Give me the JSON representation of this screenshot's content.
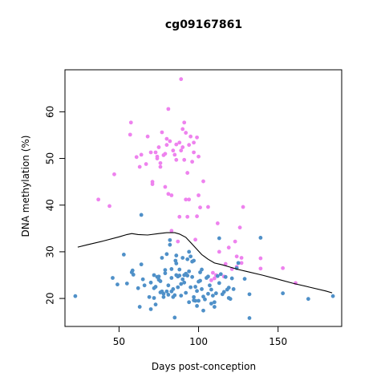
{
  "chart_data": {
    "type": "scatter",
    "title": "cg09167861",
    "xlabel": "Days post-conception",
    "ylabel": "DNA methylation (%)",
    "xlim": [
      16,
      190
    ],
    "ylim": [
      14,
      69
    ],
    "xticks": [
      50,
      100,
      150
    ],
    "yticks": [
      20,
      30,
      40,
      50,
      60
    ],
    "grid": false,
    "legend": "none",
    "series": [
      {
        "color": "#EE82EE",
        "points": [
          [
            37,
            41.2
          ],
          [
            44,
            39.8
          ],
          [
            47,
            46.6
          ],
          [
            57,
            55.1
          ],
          [
            57.5,
            57.7
          ],
          [
            61,
            50.3
          ],
          [
            63,
            48.2
          ],
          [
            64,
            50.8
          ],
          [
            67,
            48.8
          ],
          [
            68,
            54.7
          ],
          [
            70,
            51.3
          ],
          [
            71,
            45
          ],
          [
            71,
            44.5
          ],
          [
            73,
            51.3
          ],
          [
            74,
            50.4
          ],
          [
            74,
            50
          ],
          [
            75,
            52.4
          ],
          [
            76,
            49
          ],
          [
            76,
            48.2
          ],
          [
            77,
            55.6
          ],
          [
            78,
            50.7
          ],
          [
            79,
            51
          ],
          [
            79,
            43.9
          ],
          [
            80,
            54.2
          ],
          [
            80,
            52.9
          ],
          [
            81,
            60.6
          ],
          [
            81,
            42.4
          ],
          [
            82,
            53.7
          ],
          [
            83,
            34.5
          ],
          [
            83,
            42.1
          ],
          [
            84,
            51.7
          ],
          [
            85,
            50.8
          ],
          [
            86,
            53
          ],
          [
            86,
            49.7
          ],
          [
            87,
            32.2
          ],
          [
            88,
            53.4
          ],
          [
            88,
            37.5
          ],
          [
            89,
            51.7
          ],
          [
            89,
            67
          ],
          [
            90,
            56.3
          ],
          [
            90,
            52.4
          ],
          [
            91,
            57.7
          ],
          [
            91,
            49.7
          ],
          [
            92,
            41.2
          ],
          [
            92,
            55.5
          ],
          [
            93,
            46.9
          ],
          [
            93,
            37.5
          ],
          [
            94,
            41.2
          ],
          [
            94,
            52.9
          ],
          [
            95,
            54.7
          ],
          [
            96,
            49.3
          ],
          [
            97,
            51.3
          ],
          [
            97,
            53.4
          ],
          [
            98,
            32.6
          ],
          [
            99,
            54.5
          ],
          [
            99,
            37.6
          ],
          [
            100,
            42.1
          ],
          [
            100,
            50.4
          ],
          [
            101,
            39.5
          ],
          [
            103,
            45.1
          ],
          [
            106,
            39.6
          ],
          [
            108,
            23.9
          ],
          [
            109,
            25.5
          ],
          [
            110,
            24.3
          ],
          [
            111,
            25
          ],
          [
            112,
            36.1
          ],
          [
            113,
            30
          ],
          [
            116,
            24.7
          ],
          [
            117,
            27.4
          ],
          [
            119,
            30.9
          ],
          [
            121,
            26.3
          ],
          [
            123,
            32.2
          ],
          [
            124,
            29
          ],
          [
            124,
            26.8
          ],
          [
            126,
            35.2
          ],
          [
            127,
            27.6
          ],
          [
            127,
            28.7
          ],
          [
            128,
            39.6
          ],
          [
            139,
            28.6
          ],
          [
            139,
            26.4
          ],
          [
            153,
            26.5
          ],
          [
            161,
            23.3
          ]
        ]
      },
      {
        "color": "#4F90C8",
        "points": [
          [
            22.5,
            20.5
          ],
          [
            46,
            24.4
          ],
          [
            49,
            23
          ],
          [
            53,
            29.4
          ],
          [
            55,
            23.2
          ],
          [
            58,
            25.6
          ],
          [
            58.5,
            26
          ],
          [
            59,
            25.1
          ],
          [
            62,
            22.2
          ],
          [
            63,
            18.2
          ],
          [
            64,
            37.9
          ],
          [
            64,
            27.3
          ],
          [
            65,
            24.1
          ],
          [
            66,
            22.8
          ],
          [
            69,
            20.3
          ],
          [
            70,
            17.7
          ],
          [
            70,
            23.4
          ],
          [
            72,
            25
          ],
          [
            72,
            20.1
          ],
          [
            72,
            22.2
          ],
          [
            73,
            18.7
          ],
          [
            73,
            22.5
          ],
          [
            74,
            24.6
          ],
          [
            75,
            24
          ],
          [
            75,
            24.7
          ],
          [
            76,
            23.7
          ],
          [
            76,
            21.3
          ],
          [
            77,
            28.7
          ],
          [
            77,
            21.5
          ],
          [
            78,
            21
          ],
          [
            78,
            20.3
          ],
          [
            79,
            26.1
          ],
          [
            79,
            25.4
          ],
          [
            80,
            29.5
          ],
          [
            80,
            21.5
          ],
          [
            81,
            22.8
          ],
          [
            81,
            20.8
          ],
          [
            82,
            32.5
          ],
          [
            82,
            31.5
          ],
          [
            83,
            26.3
          ],
          [
            83,
            24.4
          ],
          [
            83,
            21.5
          ],
          [
            84,
            22
          ],
          [
            84,
            20.3
          ],
          [
            85,
            15.9
          ],
          [
            85,
            20.7
          ],
          [
            85.5,
            28.1
          ],
          [
            86,
            29.2
          ],
          [
            86,
            27.5
          ],
          [
            86,
            25
          ],
          [
            87,
            24.7
          ],
          [
            87,
            22.4
          ],
          [
            88,
            26.2
          ],
          [
            88,
            24.9
          ],
          [
            89,
            20.6
          ],
          [
            89,
            23.1
          ],
          [
            90,
            28.7
          ],
          [
            90,
            24.1
          ],
          [
            91,
            25
          ],
          [
            91,
            23.4
          ],
          [
            92,
            25.3
          ],
          [
            92,
            21.2
          ],
          [
            93,
            24.9
          ],
          [
            93,
            28.4
          ],
          [
            94,
            25.8
          ],
          [
            94,
            30
          ],
          [
            94,
            19.2
          ],
          [
            95,
            29
          ],
          [
            95,
            22.4
          ],
          [
            96,
            27.9
          ],
          [
            96,
            24.6
          ],
          [
            97,
            19.6
          ],
          [
            97,
            20.3
          ],
          [
            97,
            28.1
          ],
          [
            98,
            19.5
          ],
          [
            98,
            22.5
          ],
          [
            99,
            21.6
          ],
          [
            99,
            18.4
          ],
          [
            100,
            19.5
          ],
          [
            100,
            23.6
          ],
          [
            101,
            25.6
          ],
          [
            101,
            23.8
          ],
          [
            102,
            26.2
          ],
          [
            102,
            22
          ],
          [
            103,
            20.4
          ],
          [
            103,
            17.4
          ],
          [
            104,
            19.8
          ],
          [
            105,
            24.4
          ],
          [
            106,
            21
          ],
          [
            106,
            24.7
          ],
          [
            107,
            22.8
          ],
          [
            108,
            21.9
          ],
          [
            108,
            18.9
          ],
          [
            109,
            20.6
          ],
          [
            110,
            18.2
          ],
          [
            110,
            19.2
          ],
          [
            111,
            21.1
          ],
          [
            112,
            24.8
          ],
          [
            113,
            23.3
          ],
          [
            113,
            32.9
          ],
          [
            114,
            25.2
          ],
          [
            115,
            20.9
          ],
          [
            116,
            21.4
          ],
          [
            117,
            24.6
          ],
          [
            118,
            21.9
          ],
          [
            119,
            22.3
          ],
          [
            119,
            20.1
          ],
          [
            120,
            19.9
          ],
          [
            121,
            24.3
          ],
          [
            122,
            22
          ],
          [
            124,
            26.5
          ],
          [
            125,
            27.6
          ],
          [
            129,
            24.2
          ],
          [
            132,
            15.8
          ],
          [
            132,
            20.9
          ],
          [
            139,
            33
          ],
          [
            153,
            21.1
          ],
          [
            169,
            19.9
          ],
          [
            184.5,
            20.5
          ]
        ]
      }
    ],
    "trend_line": {
      "color": "#000000",
      "points": [
        [
          24,
          31
        ],
        [
          30,
          31.5
        ],
        [
          40,
          32.3
        ],
        [
          50,
          33.2
        ],
        [
          55,
          33.7
        ],
        [
          58,
          33.9
        ],
        [
          62,
          33.7
        ],
        [
          68,
          33.6
        ],
        [
          75,
          33.9
        ],
        [
          80,
          34.1
        ],
        [
          85,
          34.1
        ],
        [
          88,
          33.8
        ],
        [
          92,
          33.1
        ],
        [
          95,
          32
        ],
        [
          98,
          30.9
        ],
        [
          102,
          29.4
        ],
        [
          106,
          28.4
        ],
        [
          110,
          27.6
        ],
        [
          115,
          27.2
        ],
        [
          120,
          26.7
        ],
        [
          125,
          26.2
        ],
        [
          130,
          25.8
        ],
        [
          140,
          25
        ],
        [
          150,
          24.1
        ],
        [
          160,
          23.2
        ],
        [
          170,
          22.4
        ],
        [
          180,
          21.6
        ],
        [
          184,
          21.2
        ]
      ]
    }
  }
}
